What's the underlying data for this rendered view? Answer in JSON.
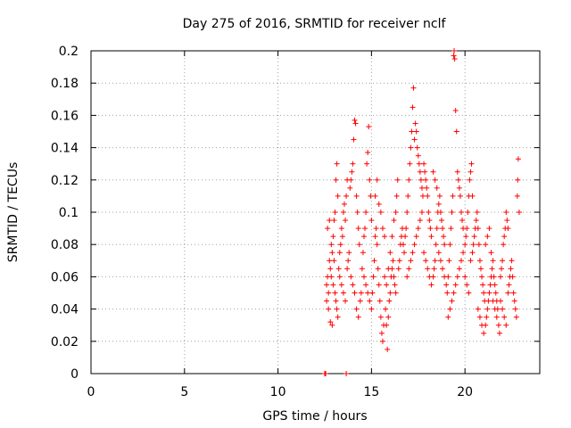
{
  "chart_data": {
    "type": "scatter",
    "title": "Day 275 of 2016, SRMTID for receiver nclf",
    "xlabel": "GPS time / hours",
    "ylabel": "SRMTID / TECUs",
    "xlim": [
      0,
      24
    ],
    "ylim": [
      0,
      0.2
    ],
    "x_ticks": [
      0,
      5,
      10,
      15,
      20
    ],
    "y_ticks": [
      0,
      0.02,
      0.04,
      0.06,
      0.08,
      0.1,
      0.12,
      0.14,
      0.16,
      0.18,
      0.2
    ],
    "x_tick_labels": [
      "0",
      "5",
      "10",
      "15",
      "20"
    ],
    "y_tick_labels": [
      "0",
      "0.02",
      "0.04",
      "0.06",
      "0.08",
      "0.1",
      "0.12",
      "0.14",
      "0.16",
      "0.18",
      "0.2"
    ],
    "grid": true,
    "marker": "plus",
    "color": "#ff0000",
    "series": [
      {
        "points": [
          [
            12.5,
            0.0
          ],
          [
            12.55,
            0.0
          ],
          [
            13.65,
            0.0
          ],
          [
            12.6,
            0.055
          ],
          [
            12.65,
            0.06
          ],
          [
            12.7,
            0.05
          ],
          [
            12.75,
            0.07
          ],
          [
            12.8,
            0.065
          ],
          [
            12.85,
            0.08
          ],
          [
            12.9,
            0.075
          ],
          [
            12.95,
            0.085
          ],
          [
            13.0,
            0.07
          ],
          [
            12.6,
            0.045
          ],
          [
            12.7,
            0.04
          ],
          [
            12.8,
            0.032
          ],
          [
            12.9,
            0.03
          ],
          [
            13.0,
            0.095
          ],
          [
            13.05,
            0.1
          ],
          [
            13.1,
            0.12
          ],
          [
            13.15,
            0.13
          ],
          [
            13.2,
            0.11
          ],
          [
            12.65,
            0.09
          ],
          [
            12.75,
            0.095
          ],
          [
            12.85,
            0.06
          ],
          [
            12.95,
            0.055
          ],
          [
            13.05,
            0.05
          ],
          [
            13.1,
            0.045
          ],
          [
            13.15,
            0.04
          ],
          [
            13.2,
            0.035
          ],
          [
            13.25,
            0.065
          ],
          [
            13.3,
            0.075
          ],
          [
            13.35,
            0.08
          ],
          [
            13.4,
            0.09
          ],
          [
            13.45,
            0.085
          ],
          [
            13.5,
            0.1
          ],
          [
            13.55,
            0.105
          ],
          [
            13.6,
            0.095
          ],
          [
            13.65,
            0.11
          ],
          [
            13.7,
            0.12
          ],
          [
            13.3,
            0.06
          ],
          [
            13.4,
            0.055
          ],
          [
            13.5,
            0.05
          ],
          [
            13.6,
            0.045
          ],
          [
            13.7,
            0.065
          ],
          [
            13.75,
            0.07
          ],
          [
            13.8,
            0.075
          ],
          [
            13.85,
            0.115
          ],
          [
            13.9,
            0.12
          ],
          [
            13.95,
            0.125
          ],
          [
            14.0,
            0.13
          ],
          [
            14.05,
            0.145
          ],
          [
            14.1,
            0.157
          ],
          [
            14.15,
            0.155
          ],
          [
            14.2,
            0.11
          ],
          [
            14.25,
            0.1
          ],
          [
            14.3,
            0.09
          ],
          [
            14.35,
            0.08
          ],
          [
            13.9,
            0.06
          ],
          [
            14.0,
            0.055
          ],
          [
            14.1,
            0.05
          ],
          [
            14.2,
            0.04
          ],
          [
            14.3,
            0.035
          ],
          [
            14.4,
            0.045
          ],
          [
            14.45,
            0.05
          ],
          [
            14.5,
            0.065
          ],
          [
            14.55,
            0.075
          ],
          [
            14.6,
            0.085
          ],
          [
            14.65,
            0.09
          ],
          [
            14.7,
            0.1
          ],
          [
            14.75,
            0.13
          ],
          [
            14.8,
            0.137
          ],
          [
            14.85,
            0.153
          ],
          [
            14.9,
            0.12
          ],
          [
            14.95,
            0.11
          ],
          [
            15.0,
            0.095
          ],
          [
            14.6,
            0.06
          ],
          [
            14.7,
            0.055
          ],
          [
            14.8,
            0.05
          ],
          [
            14.9,
            0.045
          ],
          [
            15.0,
            0.04
          ],
          [
            15.05,
            0.05
          ],
          [
            15.1,
            0.06
          ],
          [
            15.15,
            0.07
          ],
          [
            15.2,
            0.085
          ],
          [
            15.25,
            0.09
          ],
          [
            15.3,
            0.08
          ],
          [
            15.35,
            0.065
          ],
          [
            15.4,
            0.055
          ],
          [
            15.45,
            0.045
          ],
          [
            15.5,
            0.035
          ],
          [
            15.55,
            0.025
          ],
          [
            15.6,
            0.02
          ],
          [
            15.65,
            0.03
          ],
          [
            15.2,
            0.11
          ],
          [
            15.3,
            0.12
          ],
          [
            15.4,
            0.105
          ],
          [
            15.5,
            0.1
          ],
          [
            15.6,
            0.09
          ],
          [
            15.7,
            0.085
          ],
          [
            15.75,
            0.04
          ],
          [
            15.8,
            0.03
          ],
          [
            15.85,
            0.015
          ],
          [
            15.9,
            0.035
          ],
          [
            15.95,
            0.045
          ],
          [
            16.0,
            0.05
          ],
          [
            16.05,
            0.06
          ],
          [
            16.1,
            0.065
          ],
          [
            16.15,
            0.07
          ],
          [
            16.2,
            0.06
          ],
          [
            16.25,
            0.055
          ],
          [
            16.3,
            0.05
          ],
          [
            15.7,
            0.06
          ],
          [
            15.8,
            0.055
          ],
          [
            15.9,
            0.065
          ],
          [
            16.0,
            0.075
          ],
          [
            16.1,
            0.085
          ],
          [
            16.2,
            0.095
          ],
          [
            16.3,
            0.1
          ],
          [
            16.35,
            0.11
          ],
          [
            16.4,
            0.12
          ],
          [
            16.45,
            0.065
          ],
          [
            16.5,
            0.07
          ],
          [
            16.55,
            0.08
          ],
          [
            16.6,
            0.085
          ],
          [
            16.65,
            0.09
          ],
          [
            16.7,
            0.08
          ],
          [
            16.75,
            0.075
          ],
          [
            16.8,
            0.085
          ],
          [
            16.85,
            0.09
          ],
          [
            16.9,
            0.1
          ],
          [
            16.95,
            0.11
          ],
          [
            17.0,
            0.12
          ],
          [
            17.05,
            0.13
          ],
          [
            17.1,
            0.14
          ],
          [
            17.15,
            0.15
          ],
          [
            17.2,
            0.165
          ],
          [
            17.25,
            0.177
          ],
          [
            17.3,
            0.145
          ],
          [
            17.35,
            0.155
          ],
          [
            17.4,
            0.15
          ],
          [
            17.45,
            0.14
          ],
          [
            17.5,
            0.135
          ],
          [
            17.55,
            0.13
          ],
          [
            17.6,
            0.125
          ],
          [
            17.65,
            0.12
          ],
          [
            17.7,
            0.115
          ],
          [
            17.75,
            0.11
          ],
          [
            16.9,
            0.06
          ],
          [
            17.0,
            0.065
          ],
          [
            17.1,
            0.07
          ],
          [
            17.2,
            0.075
          ],
          [
            17.3,
            0.08
          ],
          [
            17.4,
            0.085
          ],
          [
            17.5,
            0.09
          ],
          [
            17.6,
            0.095
          ],
          [
            17.7,
            0.1
          ],
          [
            17.8,
            0.13
          ],
          [
            17.85,
            0.125
          ],
          [
            17.9,
            0.12
          ],
          [
            17.95,
            0.115
          ],
          [
            18.0,
            0.11
          ],
          [
            18.05,
            0.1
          ],
          [
            18.1,
            0.095
          ],
          [
            18.15,
            0.09
          ],
          [
            18.2,
            0.085
          ],
          [
            17.8,
            0.075
          ],
          [
            17.9,
            0.07
          ],
          [
            18.0,
            0.065
          ],
          [
            18.1,
            0.06
          ],
          [
            18.2,
            0.055
          ],
          [
            18.3,
            0.06
          ],
          [
            18.35,
            0.065
          ],
          [
            18.4,
            0.07
          ],
          [
            18.45,
            0.08
          ],
          [
            18.5,
            0.09
          ],
          [
            18.55,
            0.1
          ],
          [
            18.6,
            0.105
          ],
          [
            18.65,
            0.11
          ],
          [
            18.7,
            0.1
          ],
          [
            18.75,
            0.095
          ],
          [
            18.8,
            0.09
          ],
          [
            18.85,
            0.085
          ],
          [
            18.9,
            0.08
          ],
          [
            18.3,
            0.125
          ],
          [
            18.4,
            0.12
          ],
          [
            18.5,
            0.115
          ],
          [
            18.6,
            0.075
          ],
          [
            18.7,
            0.07
          ],
          [
            18.8,
            0.065
          ],
          [
            18.9,
            0.06
          ],
          [
            19.0,
            0.055
          ],
          [
            19.05,
            0.05
          ],
          [
            19.1,
            0.06
          ],
          [
            19.15,
            0.07
          ],
          [
            19.2,
            0.08
          ],
          [
            19.25,
            0.09
          ],
          [
            19.3,
            0.1
          ],
          [
            19.35,
            0.11
          ],
          [
            19.4,
            0.197
          ],
          [
            19.42,
            0.2
          ],
          [
            19.45,
            0.195
          ],
          [
            19.5,
            0.163
          ],
          [
            19.55,
            0.15
          ],
          [
            19.6,
            0.125
          ],
          [
            19.65,
            0.12
          ],
          [
            19.7,
            0.115
          ],
          [
            19.75,
            0.11
          ],
          [
            19.8,
            0.1
          ],
          [
            19.85,
            0.095
          ],
          [
            19.9,
            0.09
          ],
          [
            19.1,
            0.035
          ],
          [
            19.2,
            0.04
          ],
          [
            19.3,
            0.045
          ],
          [
            19.4,
            0.05
          ],
          [
            19.5,
            0.055
          ],
          [
            19.6,
            0.06
          ],
          [
            19.7,
            0.065
          ],
          [
            19.8,
            0.07
          ],
          [
            19.9,
            0.075
          ],
          [
            20.0,
            0.08
          ],
          [
            20.05,
            0.085
          ],
          [
            20.1,
            0.09
          ],
          [
            20.15,
            0.1
          ],
          [
            20.2,
            0.11
          ],
          [
            20.25,
            0.12
          ],
          [
            20.3,
            0.125
          ],
          [
            20.35,
            0.13
          ],
          [
            20.4,
            0.11
          ],
          [
            20.0,
            0.06
          ],
          [
            20.1,
            0.055
          ],
          [
            20.2,
            0.05
          ],
          [
            20.3,
            0.07
          ],
          [
            20.4,
            0.075
          ],
          [
            20.45,
            0.08
          ],
          [
            20.5,
            0.085
          ],
          [
            20.55,
            0.09
          ],
          [
            20.6,
            0.095
          ],
          [
            20.65,
            0.1
          ],
          [
            20.7,
            0.09
          ],
          [
            20.75,
            0.08
          ],
          [
            20.8,
            0.07
          ],
          [
            20.85,
            0.065
          ],
          [
            20.9,
            0.06
          ],
          [
            20.95,
            0.055
          ],
          [
            21.0,
            0.05
          ],
          [
            21.05,
            0.045
          ],
          [
            20.7,
            0.04
          ],
          [
            20.8,
            0.035
          ],
          [
            20.9,
            0.03
          ],
          [
            21.0,
            0.025
          ],
          [
            21.1,
            0.03
          ],
          [
            21.15,
            0.035
          ],
          [
            21.2,
            0.04
          ],
          [
            21.25,
            0.045
          ],
          [
            21.3,
            0.05
          ],
          [
            21.35,
            0.055
          ],
          [
            21.4,
            0.06
          ],
          [
            21.45,
            0.065
          ],
          [
            21.5,
            0.07
          ],
          [
            21.55,
            0.06
          ],
          [
            21.6,
            0.055
          ],
          [
            21.65,
            0.05
          ],
          [
            21.7,
            0.045
          ],
          [
            21.75,
            0.04
          ],
          [
            21.1,
            0.08
          ],
          [
            21.2,
            0.085
          ],
          [
            21.3,
            0.09
          ],
          [
            21.4,
            0.075
          ],
          [
            21.5,
            0.045
          ],
          [
            21.6,
            0.04
          ],
          [
            21.7,
            0.035
          ],
          [
            21.8,
            0.03
          ],
          [
            21.85,
            0.025
          ],
          [
            21.9,
            0.06
          ],
          [
            21.95,
            0.065
          ],
          [
            22.0,
            0.07
          ],
          [
            22.05,
            0.08
          ],
          [
            22.1,
            0.085
          ],
          [
            22.15,
            0.09
          ],
          [
            22.2,
            0.1
          ],
          [
            22.25,
            0.095
          ],
          [
            22.3,
            0.09
          ],
          [
            21.9,
            0.045
          ],
          [
            22.0,
            0.04
          ],
          [
            22.1,
            0.035
          ],
          [
            22.2,
            0.03
          ],
          [
            22.3,
            0.05
          ],
          [
            22.35,
            0.055
          ],
          [
            22.4,
            0.06
          ],
          [
            22.45,
            0.065
          ],
          [
            22.5,
            0.07
          ],
          [
            22.55,
            0.06
          ],
          [
            22.6,
            0.05
          ],
          [
            22.65,
            0.045
          ],
          [
            22.7,
            0.04
          ],
          [
            22.75,
            0.035
          ],
          [
            22.8,
            0.11
          ],
          [
            22.82,
            0.12
          ],
          [
            22.85,
            0.133
          ],
          [
            22.9,
            0.1
          ]
        ]
      }
    ]
  }
}
